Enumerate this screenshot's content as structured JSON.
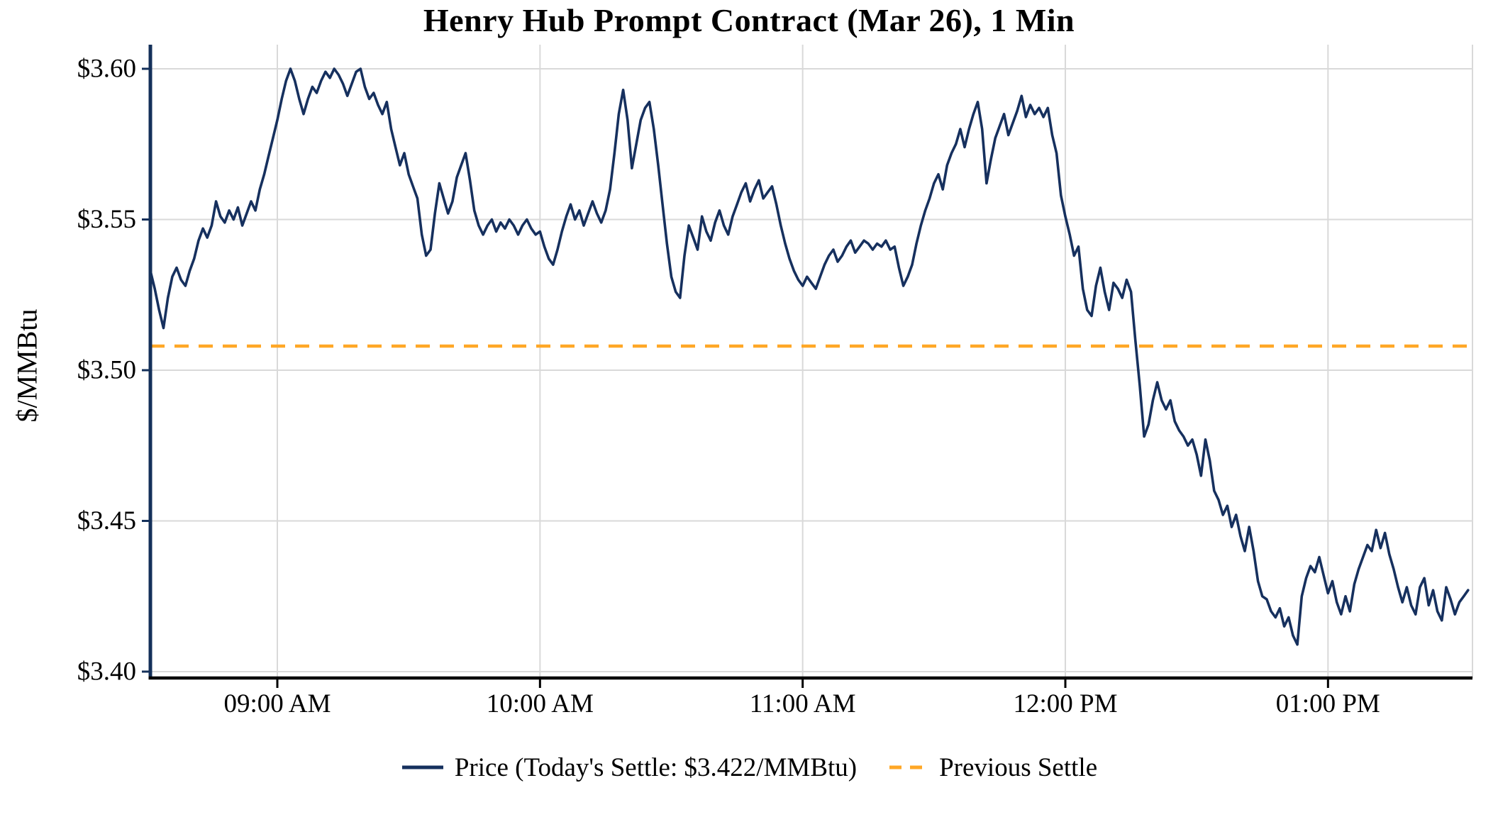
{
  "colors": {
    "price_line": "#16305e",
    "previous_settle": "#FFA726",
    "grid": "#d9d9d9",
    "axis_x": "#000000",
    "axis_y": "#14305a"
  },
  "chart_data": {
    "type": "line",
    "title": "Henry Hub Prompt Contract (Mar 26), 1 Min",
    "xlabel": "",
    "ylabel": "$/MMBtu",
    "grid": true,
    "legend_position": "bottom",
    "ylim": [
      3.4,
      3.608
    ],
    "x_unit": "minutes_since_midnight",
    "xlim": [
      511,
      813
    ],
    "x_ticks": {
      "positions": [
        540,
        600,
        660,
        720,
        780
      ],
      "labels": [
        "09:00 AM",
        "10:00 AM",
        "11:00 AM",
        "12:00 PM",
        "01:00 PM"
      ]
    },
    "y_ticks": {
      "values": [
        3.4,
        3.45,
        3.5,
        3.55,
        3.6
      ],
      "labels": [
        "$3.40",
        "$3.45",
        "$3.50",
        "$3.55",
        "$3.60"
      ]
    },
    "previous_settle": 3.508,
    "todays_settle": 3.422,
    "legend": {
      "price": "Price (Today's Settle: $3.422/MMBtu)",
      "previous": "Previous Settle"
    },
    "series": [
      {
        "name": "Price",
        "points": [
          [
            511,
            3.533
          ],
          [
            512,
            3.527
          ],
          [
            513,
            3.52
          ],
          [
            514,
            3.514
          ],
          [
            515,
            3.524
          ],
          [
            516,
            3.531
          ],
          [
            517,
            3.534
          ],
          [
            518,
            3.53
          ],
          [
            519,
            3.528
          ],
          [
            520,
            3.533
          ],
          [
            521,
            3.537
          ],
          [
            522,
            3.543
          ],
          [
            523,
            3.547
          ],
          [
            524,
            3.544
          ],
          [
            525,
            3.548
          ],
          [
            526,
            3.556
          ],
          [
            527,
            3.551
          ],
          [
            528,
            3.549
          ],
          [
            529,
            3.553
          ],
          [
            530,
            3.55
          ],
          [
            531,
            3.554
          ],
          [
            532,
            3.548
          ],
          [
            533,
            3.552
          ],
          [
            534,
            3.556
          ],
          [
            535,
            3.553
          ],
          [
            536,
            3.56
          ],
          [
            537,
            3.565
          ],
          [
            538,
            3.571
          ],
          [
            539,
            3.577
          ],
          [
            540,
            3.583
          ],
          [
            541,
            3.59
          ],
          [
            542,
            3.596
          ],
          [
            543,
            3.6
          ],
          [
            544,
            3.596
          ],
          [
            545,
            3.59
          ],
          [
            546,
            3.585
          ],
          [
            547,
            3.59
          ],
          [
            548,
            3.594
          ],
          [
            549,
            3.592
          ],
          [
            550,
            3.596
          ],
          [
            551,
            3.599
          ],
          [
            552,
            3.597
          ],
          [
            553,
            3.6
          ],
          [
            554,
            3.598
          ],
          [
            555,
            3.595
          ],
          [
            556,
            3.591
          ],
          [
            557,
            3.595
          ],
          [
            558,
            3.599
          ],
          [
            559,
            3.6
          ],
          [
            560,
            3.594
          ],
          [
            561,
            3.59
          ],
          [
            562,
            3.592
          ],
          [
            563,
            3.588
          ],
          [
            564,
            3.585
          ],
          [
            565,
            3.589
          ],
          [
            566,
            3.58
          ],
          [
            567,
            3.574
          ],
          [
            568,
            3.568
          ],
          [
            569,
            3.572
          ],
          [
            570,
            3.565
          ],
          [
            571,
            3.561
          ],
          [
            572,
            3.557
          ],
          [
            573,
            3.545
          ],
          [
            574,
            3.538
          ],
          [
            575,
            3.54
          ],
          [
            576,
            3.552
          ],
          [
            577,
            3.562
          ],
          [
            578,
            3.557
          ],
          [
            579,
            3.552
          ],
          [
            580,
            3.556
          ],
          [
            581,
            3.564
          ],
          [
            582,
            3.568
          ],
          [
            583,
            3.572
          ],
          [
            584,
            3.563
          ],
          [
            585,
            3.553
          ],
          [
            586,
            3.548
          ],
          [
            587,
            3.545
          ],
          [
            588,
            3.548
          ],
          [
            589,
            3.55
          ],
          [
            590,
            3.546
          ],
          [
            591,
            3.549
          ],
          [
            592,
            3.547
          ],
          [
            593,
            3.55
          ],
          [
            594,
            3.548
          ],
          [
            595,
            3.545
          ],
          [
            596,
            3.548
          ],
          [
            597,
            3.55
          ],
          [
            598,
            3.547
          ],
          [
            599,
            3.545
          ],
          [
            600,
            3.546
          ],
          [
            601,
            3.541
          ],
          [
            602,
            3.537
          ],
          [
            603,
            3.535
          ],
          [
            604,
            3.54
          ],
          [
            605,
            3.546
          ],
          [
            606,
            3.551
          ],
          [
            607,
            3.555
          ],
          [
            608,
            3.55
          ],
          [
            609,
            3.553
          ],
          [
            610,
            3.548
          ],
          [
            611,
            3.552
          ],
          [
            612,
            3.556
          ],
          [
            613,
            3.552
          ],
          [
            614,
            3.549
          ],
          [
            615,
            3.553
          ],
          [
            616,
            3.56
          ],
          [
            617,
            3.572
          ],
          [
            618,
            3.585
          ],
          [
            619,
            3.593
          ],
          [
            620,
            3.583
          ],
          [
            621,
            3.567
          ],
          [
            622,
            3.575
          ],
          [
            623,
            3.583
          ],
          [
            624,
            3.587
          ],
          [
            625,
            3.589
          ],
          [
            626,
            3.58
          ],
          [
            627,
            3.568
          ],
          [
            628,
            3.555
          ],
          [
            629,
            3.542
          ],
          [
            630,
            3.531
          ],
          [
            631,
            3.526
          ],
          [
            632,
            3.524
          ],
          [
            633,
            3.538
          ],
          [
            634,
            3.548
          ],
          [
            635,
            3.544
          ],
          [
            636,
            3.54
          ],
          [
            637,
            3.551
          ],
          [
            638,
            3.546
          ],
          [
            639,
            3.543
          ],
          [
            640,
            3.549
          ],
          [
            641,
            3.553
          ],
          [
            642,
            3.548
          ],
          [
            643,
            3.545
          ],
          [
            644,
            3.551
          ],
          [
            645,
            3.555
          ],
          [
            646,
            3.559
          ],
          [
            647,
            3.562
          ],
          [
            648,
            3.556
          ],
          [
            649,
            3.56
          ],
          [
            650,
            3.563
          ],
          [
            651,
            3.557
          ],
          [
            652,
            3.559
          ],
          [
            653,
            3.561
          ],
          [
            654,
            3.555
          ],
          [
            655,
            3.548
          ],
          [
            656,
            3.542
          ],
          [
            657,
            3.537
          ],
          [
            658,
            3.533
          ],
          [
            659,
            3.53
          ],
          [
            660,
            3.528
          ],
          [
            661,
            3.531
          ],
          [
            662,
            3.529
          ],
          [
            663,
            3.527
          ],
          [
            664,
            3.531
          ],
          [
            665,
            3.535
          ],
          [
            666,
            3.538
          ],
          [
            667,
            3.54
          ],
          [
            668,
            3.536
          ],
          [
            669,
            3.538
          ],
          [
            670,
            3.541
          ],
          [
            671,
            3.543
          ],
          [
            672,
            3.539
          ],
          [
            673,
            3.541
          ],
          [
            674,
            3.543
          ],
          [
            675,
            3.542
          ],
          [
            676,
            3.54
          ],
          [
            677,
            3.542
          ],
          [
            678,
            3.541
          ],
          [
            679,
            3.543
          ],
          [
            680,
            3.54
          ],
          [
            681,
            3.541
          ],
          [
            682,
            3.534
          ],
          [
            683,
            3.528
          ],
          [
            684,
            3.531
          ],
          [
            685,
            3.535
          ],
          [
            686,
            3.542
          ],
          [
            687,
            3.548
          ],
          [
            688,
            3.553
          ],
          [
            689,
            3.557
          ],
          [
            690,
            3.562
          ],
          [
            691,
            3.565
          ],
          [
            692,
            3.56
          ],
          [
            693,
            3.568
          ],
          [
            694,
            3.572
          ],
          [
            695,
            3.575
          ],
          [
            696,
            3.58
          ],
          [
            697,
            3.574
          ],
          [
            698,
            3.58
          ],
          [
            699,
            3.585
          ],
          [
            700,
            3.589
          ],
          [
            701,
            3.58
          ],
          [
            702,
            3.562
          ],
          [
            703,
            3.57
          ],
          [
            704,
            3.577
          ],
          [
            705,
            3.581
          ],
          [
            706,
            3.585
          ],
          [
            707,
            3.578
          ],
          [
            708,
            3.582
          ],
          [
            709,
            3.586
          ],
          [
            710,
            3.591
          ],
          [
            711,
            3.584
          ],
          [
            712,
            3.588
          ],
          [
            713,
            3.585
          ],
          [
            714,
            3.587
          ],
          [
            715,
            3.584
          ],
          [
            716,
            3.587
          ],
          [
            717,
            3.578
          ],
          [
            718,
            3.572
          ],
          [
            719,
            3.558
          ],
          [
            720,
            3.551
          ],
          [
            721,
            3.545
          ],
          [
            722,
            3.538
          ],
          [
            723,
            3.541
          ],
          [
            724,
            3.527
          ],
          [
            725,
            3.52
          ],
          [
            726,
            3.518
          ],
          [
            727,
            3.528
          ],
          [
            728,
            3.534
          ],
          [
            729,
            3.526
          ],
          [
            730,
            3.52
          ],
          [
            731,
            3.529
          ],
          [
            732,
            3.527
          ],
          [
            733,
            3.524
          ],
          [
            734,
            3.53
          ],
          [
            735,
            3.526
          ],
          [
            736,
            3.51
          ],
          [
            737,
            3.495
          ],
          [
            738,
            3.478
          ],
          [
            739,
            3.482
          ],
          [
            740,
            3.49
          ],
          [
            741,
            3.496
          ],
          [
            742,
            3.49
          ],
          [
            743,
            3.487
          ],
          [
            744,
            3.49
          ],
          [
            745,
            3.483
          ],
          [
            746,
            3.48
          ],
          [
            747,
            3.478
          ],
          [
            748,
            3.475
          ],
          [
            749,
            3.477
          ],
          [
            750,
            3.472
          ],
          [
            751,
            3.465
          ],
          [
            752,
            3.477
          ],
          [
            753,
            3.47
          ],
          [
            754,
            3.46
          ],
          [
            755,
            3.457
          ],
          [
            756,
            3.452
          ],
          [
            757,
            3.455
          ],
          [
            758,
            3.448
          ],
          [
            759,
            3.452
          ],
          [
            760,
            3.445
          ],
          [
            761,
            3.44
          ],
          [
            762,
            3.448
          ],
          [
            763,
            3.44
          ],
          [
            764,
            3.43
          ],
          [
            765,
            3.425
          ],
          [
            766,
            3.424
          ],
          [
            767,
            3.42
          ],
          [
            768,
            3.418
          ],
          [
            769,
            3.421
          ],
          [
            770,
            3.415
          ],
          [
            771,
            3.418
          ],
          [
            772,
            3.412
          ],
          [
            773,
            3.409
          ],
          [
            774,
            3.425
          ],
          [
            775,
            3.431
          ],
          [
            776,
            3.435
          ],
          [
            777,
            3.433
          ],
          [
            778,
            3.438
          ],
          [
            779,
            3.432
          ],
          [
            780,
            3.426
          ],
          [
            781,
            3.43
          ],
          [
            782,
            3.423
          ],
          [
            783,
            3.419
          ],
          [
            784,
            3.425
          ],
          [
            785,
            3.42
          ],
          [
            786,
            3.429
          ],
          [
            787,
            3.434
          ],
          [
            788,
            3.438
          ],
          [
            789,
            3.442
          ],
          [
            790,
            3.44
          ],
          [
            791,
            3.447
          ],
          [
            792,
            3.441
          ],
          [
            793,
            3.446
          ],
          [
            794,
            3.439
          ],
          [
            795,
            3.434
          ],
          [
            796,
            3.428
          ],
          [
            797,
            3.423
          ],
          [
            798,
            3.428
          ],
          [
            799,
            3.422
          ],
          [
            800,
            3.419
          ],
          [
            801,
            3.428
          ],
          [
            802,
            3.431
          ],
          [
            803,
            3.422
          ],
          [
            804,
            3.427
          ],
          [
            805,
            3.42
          ],
          [
            806,
            3.417
          ],
          [
            807,
            3.428
          ],
          [
            808,
            3.424
          ],
          [
            809,
            3.419
          ],
          [
            810,
            3.423
          ],
          [
            811,
            3.425
          ],
          [
            812,
            3.427
          ]
        ]
      }
    ]
  }
}
